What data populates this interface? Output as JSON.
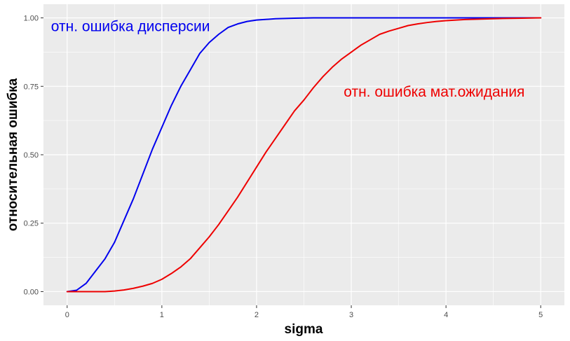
{
  "chart_data": {
    "type": "line",
    "title": "",
    "xlabel": "sigma",
    "ylabel": "относительная ошибка",
    "xlim": [
      -0.25,
      5.25
    ],
    "ylim": [
      -0.05,
      1.05
    ],
    "x_ticks": [
      0,
      1,
      2,
      3,
      4,
      5
    ],
    "x_tick_labels": [
      "0",
      "1",
      "2",
      "3",
      "4",
      "5"
    ],
    "y_ticks": [
      0,
      0.25,
      0.5,
      0.75,
      1
    ],
    "y_tick_labels": [
      "0.00",
      "0.25",
      "0.50",
      "0.75",
      "1.00"
    ],
    "grid": true,
    "legend": "none",
    "background_color": "#ebebeb",
    "grid_color": "#ffffff",
    "series": [
      {
        "color": "#0000ee",
        "x": [
          0,
          0.1,
          0.2,
          0.3,
          0.4,
          0.5,
          0.6,
          0.7,
          0.8,
          0.9,
          1.0,
          1.1,
          1.2,
          1.3,
          1.4,
          1.5,
          1.6,
          1.7,
          1.8,
          1.9,
          2.0,
          2.2,
          2.4,
          2.6,
          3.0,
          3.5,
          4.0,
          5.0
        ],
        "y": [
          0.0,
          0.005,
          0.03,
          0.075,
          0.12,
          0.18,
          0.26,
          0.34,
          0.43,
          0.52,
          0.6,
          0.68,
          0.75,
          0.81,
          0.87,
          0.91,
          0.94,
          0.965,
          0.978,
          0.987,
          0.992,
          0.997,
          0.999,
          1.0,
          1.0,
          1.0,
          1.0,
          1.0
        ]
      },
      {
        "color": "#ee0000",
        "x": [
          0,
          0.2,
          0.4,
          0.5,
          0.6,
          0.7,
          0.8,
          0.9,
          1.0,
          1.1,
          1.2,
          1.3,
          1.4,
          1.5,
          1.6,
          1.7,
          1.8,
          1.9,
          2.0,
          2.1,
          2.2,
          2.3,
          2.4,
          2.5,
          2.6,
          2.7,
          2.8,
          2.9,
          3.0,
          3.1,
          3.2,
          3.3,
          3.4,
          3.5,
          3.6,
          3.7,
          3.8,
          3.9,
          4.0,
          4.2,
          4.4,
          4.6,
          4.8,
          5.0
        ],
        "y": [
          0.0,
          0.0,
          0.0,
          0.002,
          0.006,
          0.012,
          0.02,
          0.03,
          0.045,
          0.066,
          0.09,
          0.12,
          0.16,
          0.2,
          0.245,
          0.295,
          0.345,
          0.4,
          0.455,
          0.51,
          0.56,
          0.61,
          0.66,
          0.7,
          0.745,
          0.785,
          0.82,
          0.85,
          0.875,
          0.9,
          0.92,
          0.94,
          0.952,
          0.962,
          0.972,
          0.978,
          0.983,
          0.987,
          0.99,
          0.994,
          0.996,
          0.998,
          0.999,
          1.0
        ]
      }
    ],
    "annotations": [
      {
        "text": "отн. ошибка дисперсии",
        "x": -0.17,
        "y": 0.97,
        "color": "#0000ee"
      },
      {
        "text": "отн. ошибка мат.ожидания",
        "x": 2.92,
        "y": 0.73,
        "color": "#ee0000"
      }
    ]
  }
}
